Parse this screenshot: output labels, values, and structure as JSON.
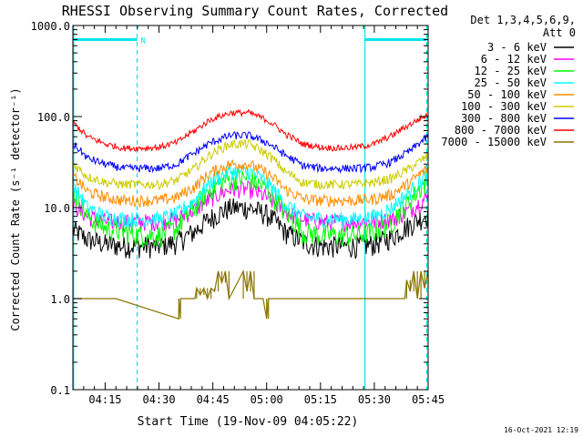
{
  "chart_data": {
    "type": "line",
    "title": "RHESSI Observing Summary Count Rates, Corrected",
    "xlabel": "Start Time (19-Nov-09 04:05:22)",
    "ylabel": "Corrected Count Rate (s⁻¹ detector⁻¹)",
    "yscale": "log",
    "ylim": [
      0.1,
      1000
    ],
    "xlim_minutes": [
      6.0,
      105.0
    ],
    "x_tick_minutes": [
      15,
      30,
      45,
      60,
      75,
      90,
      105
    ],
    "x_tick_labels": [
      "04:15",
      "04:30",
      "04:45",
      "05:00",
      "05:15",
      "05:30",
      "05:45"
    ],
    "y_tick_values": [
      0.1,
      1,
      10,
      100,
      1000
    ],
    "y_tick_labels": [
      "0.1",
      "1.0",
      "10.0",
      "100.0",
      "1000.0"
    ],
    "grid": false,
    "legend_position": "right",
    "legend_header": [
      "Det 1,3,4,5,6,9,",
      "Att 0"
    ],
    "footer": "16-Oct-2021 12:19",
    "night_marker": "N",
    "annotations": {
      "vertical_lines_minutes": [
        {
          "x": 6.2,
          "style": "solid"
        },
        {
          "x": 23.9,
          "style": "dashed"
        },
        {
          "x": 87.4,
          "style": "solid"
        },
        {
          "x": 104.6,
          "style": "dashed"
        }
      ],
      "bar_segments_minutes": [
        [
          6.2,
          23.9
        ],
        [
          87.4,
          104.6
        ]
      ],
      "bar_level": 700
    },
    "series": [
      {
        "name": "3 - 6 keV",
        "color": "#000000",
        "x": [
          6,
          10,
          15,
          20,
          25,
          30,
          35,
          40,
          45,
          50,
          55,
          60,
          65,
          70,
          75,
          80,
          85,
          90,
          95,
          100,
          105
        ],
        "values": [
          5.8,
          4.5,
          4.0,
          3.8,
          3.8,
          3.8,
          4.2,
          5.5,
          8.0,
          10.0,
          10.0,
          8.5,
          5.5,
          4.2,
          3.8,
          3.8,
          3.8,
          4.0,
          4.8,
          6.5,
          8.5
        ]
      },
      {
        "name": "6 - 12 keV",
        "color": "#ff00ff",
        "x": [
          6,
          10,
          15,
          20,
          25,
          30,
          35,
          40,
          45,
          50,
          55,
          60,
          65,
          70,
          75,
          80,
          85,
          90,
          95,
          100,
          105
        ],
        "values": [
          11.0,
          8.0,
          7.0,
          7.0,
          7.0,
          7.0,
          7.5,
          9.5,
          13.0,
          16.0,
          16.0,
          13.0,
          9.0,
          7.5,
          7.0,
          7.0,
          7.0,
          7.0,
          7.5,
          9.5,
          13.0
        ]
      },
      {
        "name": "12 - 25 keV",
        "color": "#00ff00",
        "x": [
          6,
          10,
          15,
          20,
          25,
          30,
          35,
          40,
          45,
          50,
          55,
          60,
          65,
          70,
          75,
          80,
          85,
          90,
          95,
          100,
          105
        ],
        "values": [
          15.0,
          8.0,
          6.0,
          5.5,
          5.0,
          5.0,
          6.0,
          10.0,
          17.0,
          21.0,
          21.0,
          16.0,
          9.0,
          5.5,
          5.0,
          5.0,
          5.0,
          5.5,
          7.0,
          12.0,
          20.0
        ]
      },
      {
        "name": "25 - 50 keV",
        "color": "#00ffff",
        "x": [
          6,
          10,
          15,
          20,
          25,
          30,
          35,
          40,
          45,
          50,
          55,
          60,
          65,
          70,
          75,
          80,
          85,
          90,
          95,
          100,
          105
        ],
        "values": [
          17.0,
          10.0,
          8.0,
          7.5,
          7.5,
          7.5,
          8.5,
          12.0,
          20.0,
          25.0,
          25.0,
          19.0,
          11.0,
          8.0,
          7.5,
          7.5,
          7.5,
          8.0,
          10.0,
          15.0,
          23.0
        ]
      },
      {
        "name": "50 - 100 keV",
        "color": "#ff8c00",
        "x": [
          6,
          10,
          15,
          20,
          25,
          30,
          35,
          40,
          45,
          50,
          55,
          60,
          65,
          70,
          75,
          80,
          85,
          90,
          95,
          100,
          105
        ],
        "values": [
          22.0,
          15.0,
          13.0,
          12.0,
          12.0,
          12.0,
          13.0,
          17.0,
          25.0,
          30.0,
          30.0,
          24.0,
          16.0,
          12.5,
          12.0,
          12.0,
          12.0,
          12.5,
          14.0,
          19.0,
          27.0
        ]
      },
      {
        "name": "100 - 300 keV",
        "color": "#cccc00",
        "x": [
          6,
          10,
          15,
          20,
          25,
          30,
          35,
          40,
          45,
          50,
          55,
          60,
          65,
          70,
          75,
          80,
          85,
          90,
          95,
          100,
          105
        ],
        "values": [
          30.0,
          22.0,
          19.0,
          18.0,
          18.0,
          18.0,
          20.0,
          27.0,
          40.0,
          50.0,
          50.0,
          39.0,
          25.0,
          19.0,
          18.0,
          18.0,
          18.0,
          19.0,
          21.0,
          27.0,
          37.0
        ]
      },
      {
        "name": "300 - 800 keV",
        "color": "#0000ff",
        "x": [
          6,
          10,
          15,
          20,
          25,
          30,
          35,
          40,
          45,
          50,
          55,
          60,
          65,
          70,
          75,
          80,
          85,
          90,
          95,
          100,
          105
        ],
        "values": [
          50.0,
          35.0,
          30.0,
          27.0,
          27.0,
          27.0,
          30.0,
          40.0,
          53.0,
          62.0,
          62.0,
          52.0,
          38.0,
          29.0,
          27.0,
          27.0,
          27.0,
          28.0,
          32.0,
          42.0,
          60.0
        ]
      },
      {
        "name": "800 - 7000 keV",
        "color": "#ff0000",
        "x": [
          6,
          10,
          15,
          20,
          25,
          30,
          35,
          40,
          45,
          50,
          55,
          60,
          65,
          70,
          75,
          80,
          85,
          90,
          95,
          100,
          105
        ],
        "values": [
          85.0,
          60.0,
          50.0,
          45.0,
          45.0,
          46.0,
          52.0,
          70.0,
          95.0,
          110.0,
          110.0,
          92.0,
          65.0,
          50.0,
          46.0,
          45.0,
          46.0,
          50.0,
          62.0,
          82.0,
          105.0
        ]
      },
      {
        "name": "7000 - 15000 keV",
        "color": "#8b7500",
        "x": [
          6,
          7,
          18,
          35.5,
          36,
          40,
          40.5,
          41.5,
          42.5,
          43.5,
          44.5,
          45.5,
          46.5,
          47.5,
          48.5,
          49.5,
          53.5,
          54.5,
          55.5,
          56.5,
          59,
          60,
          60.5,
          98.5,
          99,
          100,
          101,
          102,
          103,
          104,
          105
        ],
        "values": [
          1.0,
          1.0,
          1.0,
          0.6,
          1.0,
          1.0,
          1.3,
          1.1,
          1.3,
          1.0,
          1.3,
          1.2,
          2.0,
          1.5,
          2.0,
          1.0,
          2.0,
          1.2,
          2.0,
          1.0,
          1.0,
          0.6,
          1.0,
          1.0,
          1.6,
          1.2,
          2.0,
          1.0,
          2.0,
          1.3,
          2.0
        ]
      }
    ]
  }
}
